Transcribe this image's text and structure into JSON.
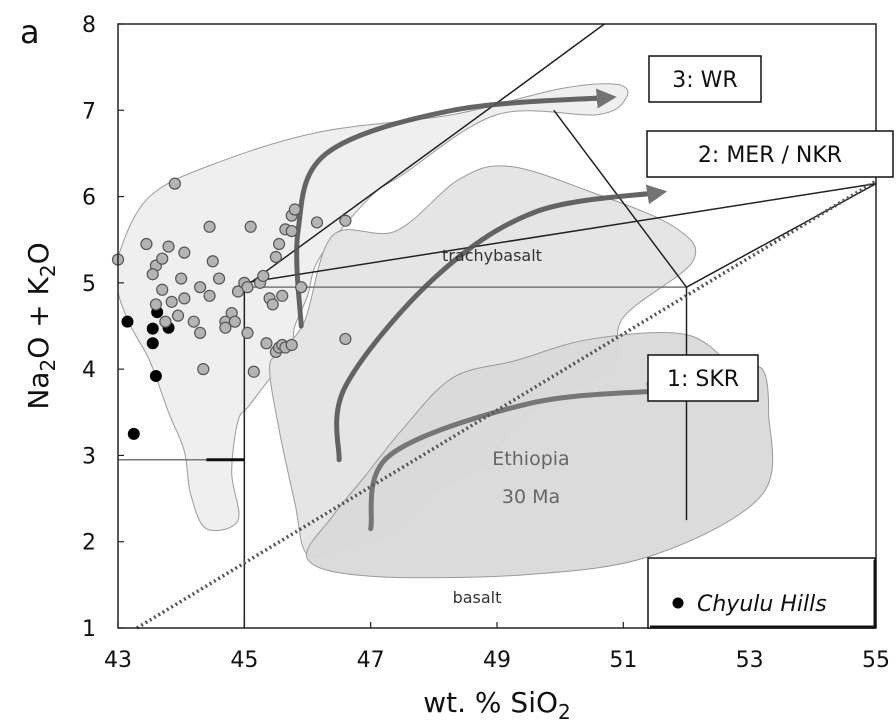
{
  "chart_data": {
    "type": "scatter",
    "panel_label": "a",
    "xlabel_main": "wt. % SiO",
    "xlabel_sub": "2",
    "ylabel_parts": [
      "Na",
      "2",
      "O + K",
      "2",
      "O"
    ],
    "xlim": [
      43,
      55
    ],
    "ylim": [
      1,
      8
    ],
    "x_ticks": [
      43,
      45,
      47,
      49,
      51,
      53,
      55
    ],
    "y_ticks": [
      1,
      2,
      3,
      4,
      5,
      6,
      7,
      8
    ],
    "legend_position": "bottom-right",
    "field_labels": {
      "trachybasalt": "trachybasalt",
      "basalt": "basalt",
      "ethiopia_line1": "Ethiopia",
      "ethiopia_line2": "30 Ma"
    },
    "trend_labels": {
      "wr": "3: WR",
      "mer": "2: MER / NKR",
      "skr": "1: SKR"
    },
    "series": [
      {
        "name": "Chyulu Hills",
        "color": "#000000",
        "points": [
          [
            43.15,
            4.55
          ],
          [
            43.55,
            4.47
          ],
          [
            43.62,
            4.66
          ],
          [
            43.55,
            4.3
          ],
          [
            43.8,
            4.48
          ],
          [
            43.6,
            3.92
          ],
          [
            43.25,
            3.25
          ]
        ]
      },
      {
        "name": "",
        "color": "#9a9a9a",
        "points": [
          [
            43.0,
            5.27
          ],
          [
            43.45,
            5.45
          ],
          [
            43.6,
            5.2
          ],
          [
            43.55,
            5.1
          ],
          [
            43.7,
            5.28
          ],
          [
            43.8,
            5.42
          ],
          [
            43.9,
            6.15
          ],
          [
            43.7,
            4.92
          ],
          [
            43.85,
            4.78
          ],
          [
            43.6,
            4.75
          ],
          [
            43.75,
            4.55
          ],
          [
            43.95,
            4.62
          ],
          [
            44.05,
            4.82
          ],
          [
            44.0,
            5.05
          ],
          [
            44.05,
            5.35
          ],
          [
            44.2,
            4.55
          ],
          [
            44.3,
            4.42
          ],
          [
            44.35,
            4.0
          ],
          [
            44.3,
            4.95
          ],
          [
            44.45,
            5.65
          ],
          [
            44.5,
            5.25
          ],
          [
            44.45,
            4.85
          ],
          [
            44.6,
            5.05
          ],
          [
            44.7,
            4.55
          ],
          [
            44.7,
            4.48
          ],
          [
            44.8,
            4.65
          ],
          [
            44.85,
            4.55
          ],
          [
            44.9,
            4.9
          ],
          [
            45.0,
            5.0
          ],
          [
            45.05,
            4.95
          ],
          [
            45.05,
            4.42
          ],
          [
            45.1,
            5.65
          ],
          [
            45.15,
            3.97
          ],
          [
            45.25,
            5.0
          ],
          [
            45.3,
            5.08
          ],
          [
            45.4,
            4.82
          ],
          [
            45.45,
            4.75
          ],
          [
            45.35,
            4.3
          ],
          [
            45.5,
            4.2
          ],
          [
            45.55,
            4.25
          ],
          [
            45.6,
            4.28
          ],
          [
            45.65,
            4.25
          ],
          [
            45.75,
            4.28
          ],
          [
            45.5,
            5.3
          ],
          [
            45.55,
            5.45
          ],
          [
            45.75,
            5.78
          ],
          [
            45.65,
            5.62
          ],
          [
            45.8,
            5.85
          ],
          [
            45.9,
            4.95
          ],
          [
            45.75,
            5.6
          ],
          [
            46.15,
            5.7
          ],
          [
            46.6,
            5.72
          ],
          [
            46.6,
            4.35
          ],
          [
            45.6,
            4.85
          ]
        ]
      }
    ],
    "trends": [
      {
        "name": "3: WR",
        "points": [
          [
            45.9,
            4.5
          ],
          [
            45.85,
            5.6
          ],
          [
            46.3,
            6.5
          ],
          [
            48.3,
            7.0
          ],
          [
            50.8,
            7.15
          ]
        ]
      },
      {
        "name": "2: MER / NKR",
        "points": [
          [
            46.5,
            2.95
          ],
          [
            46.6,
            3.8
          ],
          [
            48.0,
            5.05
          ],
          [
            49.6,
            5.82
          ],
          [
            51.6,
            6.05
          ]
        ]
      },
      {
        "name": "1: SKR",
        "points": [
          [
            47.0,
            2.15
          ],
          [
            47.3,
            3.0
          ],
          [
            49.5,
            3.6
          ],
          [
            51.6,
            3.75
          ]
        ]
      }
    ],
    "fields": [
      {
        "name": "",
        "fill": "#eeeeee",
        "points": [
          [
            43.0,
            5.3
          ],
          [
            43.5,
            6.0
          ],
          [
            44.6,
            6.4
          ],
          [
            46.2,
            6.75
          ],
          [
            48.3,
            6.95
          ],
          [
            50.0,
            7.25
          ],
          [
            50.9,
            7.3
          ],
          [
            51.05,
            7.15
          ],
          [
            50.6,
            6.95
          ],
          [
            49.0,
            6.95
          ],
          [
            47.5,
            6.25
          ],
          [
            47.0,
            6.0
          ],
          [
            46.2,
            5.3
          ],
          [
            46.0,
            4.85
          ],
          [
            45.8,
            4.5
          ],
          [
            45.7,
            4.2
          ],
          [
            45.1,
            3.6
          ],
          [
            44.9,
            3.4
          ],
          [
            44.8,
            2.8
          ],
          [
            44.9,
            2.25
          ],
          [
            44.4,
            2.15
          ],
          [
            44.15,
            2.55
          ],
          [
            44.05,
            3.05
          ],
          [
            43.8,
            3.5
          ],
          [
            43.5,
            4.1
          ],
          [
            43.2,
            4.5
          ],
          [
            43.0,
            4.9
          ]
        ]
      },
      {
        "name": "",
        "fill": "#e4e4e4",
        "points": [
          [
            45.55,
            4.2
          ],
          [
            45.95,
            4.55
          ],
          [
            46.4,
            5.55
          ],
          [
            47.4,
            5.6
          ],
          [
            48.4,
            6.2
          ],
          [
            49.2,
            6.35
          ],
          [
            50.5,
            6.05
          ],
          [
            51.8,
            5.65
          ],
          [
            52.1,
            5.25
          ],
          [
            51.0,
            4.6
          ],
          [
            50.8,
            4.0
          ],
          [
            49.5,
            3.5
          ],
          [
            48.8,
            2.9
          ],
          [
            48.0,
            2.6
          ],
          [
            47.3,
            2.1
          ],
          [
            46.6,
            1.95
          ],
          [
            46.0,
            1.85
          ],
          [
            45.8,
            2.45
          ],
          [
            45.55,
            3.3
          ],
          [
            45.4,
            4.0
          ]
        ]
      },
      {
        "name": "",
        "fill": "#d9d9d9",
        "points": [
          [
            46.0,
            1.8
          ],
          [
            47.0,
            1.6
          ],
          [
            49.5,
            1.62
          ],
          [
            51.5,
            1.85
          ],
          [
            53.2,
            2.55
          ],
          [
            53.3,
            3.5
          ],
          [
            53.2,
            4.0
          ],
          [
            52.8,
            4.0
          ],
          [
            52.0,
            4.4
          ],
          [
            50.5,
            4.35
          ],
          [
            49.3,
            4.1
          ],
          [
            48.3,
            3.9
          ],
          [
            47.5,
            3.3
          ],
          [
            46.9,
            2.75
          ],
          [
            46.4,
            2.3
          ]
        ]
      }
    ],
    "boundaries": [
      {
        "points": [
          [
            43.0,
            2.95
          ],
          [
            45.0,
            2.95
          ]
        ]
      },
      {
        "points": [
          [
            45.0,
            1.0
          ],
          [
            45.0,
            4.95
          ]
        ]
      },
      {
        "points": [
          [
            45.0,
            4.95
          ],
          [
            52.0,
            4.95
          ]
        ]
      },
      {
        "points": [
          [
            45.0,
            4.95
          ],
          [
            49.4,
            7.3
          ],
          [
            52.0,
            8.7
          ]
        ]
      },
      {
        "points": [
          [
            52.0,
            2.25
          ],
          [
            52.0,
            4.95
          ]
        ]
      },
      {
        "points": [
          [
            49.9,
            7.0
          ],
          [
            52.0,
            4.95
          ]
        ]
      },
      {
        "points": [
          [
            45.0,
            5.0
          ],
          [
            55.0,
            6.15
          ]
        ]
      },
      {
        "points": [
          [
            52.0,
            4.95
          ],
          [
            55.0,
            6.15
          ]
        ]
      }
    ],
    "dotted_line": [
      [
        43.3,
        1.0
      ],
      [
        55.0,
        6.18
      ]
    ]
  }
}
